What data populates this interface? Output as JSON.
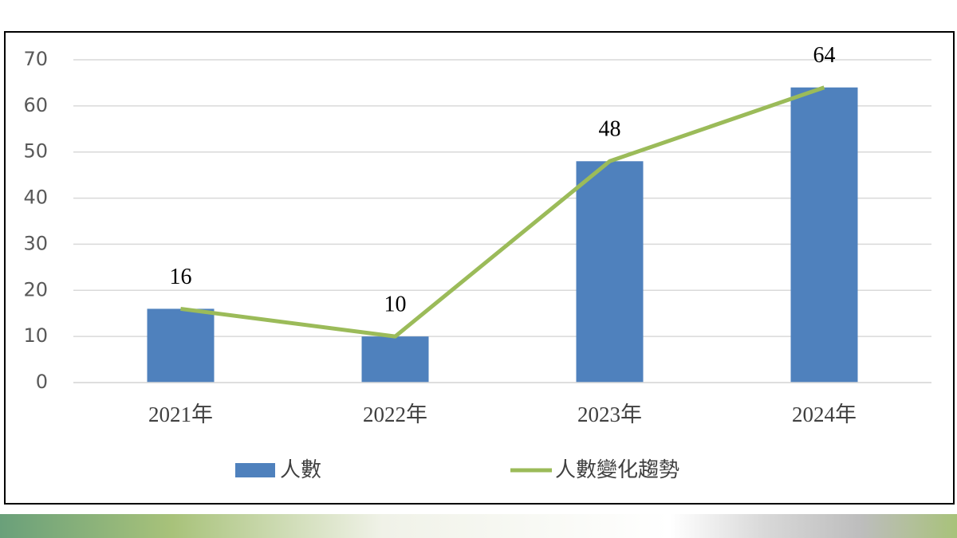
{
  "chart_data": {
    "type": "combo",
    "categories": [
      "2021年",
      "2022年",
      "2023年",
      "2024年"
    ],
    "series": [
      {
        "name": "人數",
        "type": "bar",
        "color": "#4f81bd",
        "values": [
          16,
          10,
          48,
          64
        ]
      },
      {
        "name": "人數變化趨勢",
        "type": "line",
        "color": "#9bbb59",
        "values": [
          16,
          10,
          48,
          64
        ]
      }
    ],
    "ylim": [
      0,
      70
    ],
    "yticks": [
      0,
      10,
      20,
      30,
      40,
      50,
      60,
      70
    ],
    "grid": true,
    "legend": "bottom"
  }
}
